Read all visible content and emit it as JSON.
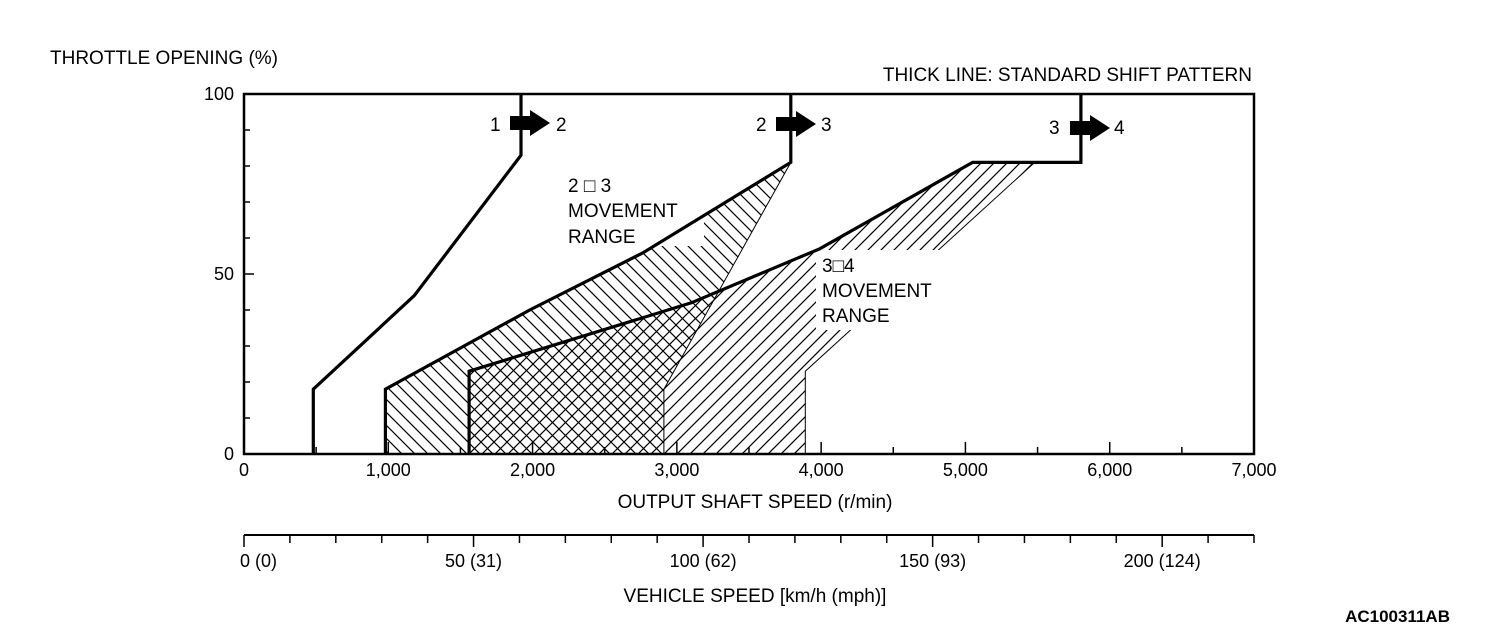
{
  "chart_data": {
    "type": "line",
    "y_axis_title": "THROTTLE OPENING (%)",
    "x_axis_title": "OUTPUT SHAFT SPEED (r/min)",
    "x2_axis_title": "VEHICLE SPEED [km/h (mph)]",
    "note": "THICK LINE: STANDARD SHIFT PATTERN",
    "figure_code": "AC100311AB",
    "x_range": [
      0,
      7000
    ],
    "y_range": [
      0,
      100
    ],
    "x_tick_values": [
      0,
      1000,
      2000,
      3000,
      4000,
      5000,
      6000,
      7000
    ],
    "x_tick_labels": [
      "0",
      "1,000",
      "2,000",
      "3,000",
      "4,000",
      "5,000",
      "6,000",
      "7,000"
    ],
    "y_tick_values": [
      0,
      50,
      100
    ],
    "y_tick_labels": [
      "0",
      "50",
      "100"
    ],
    "x2_range": [
      0,
      220
    ],
    "x2_tick_values": [
      0,
      50,
      100,
      150,
      200
    ],
    "x2_tick_labels": [
      "0 (0)",
      "50 (31)",
      "100 (62)",
      "150 (93)",
      "200 (124)"
    ],
    "shift_lines": [
      {
        "label": "1 → 2",
        "from": "1",
        "to": "2",
        "points": [
          [
            480,
            0
          ],
          [
            480,
            18
          ],
          [
            1180,
            44
          ],
          [
            1920,
            83
          ],
          [
            1920,
            100
          ]
        ]
      },
      {
        "label": "2 → 3",
        "from": "2",
        "to": "3",
        "points": [
          [
            980,
            0
          ],
          [
            980,
            18
          ],
          [
            1980,
            40
          ],
          [
            2770,
            56
          ],
          [
            3790,
            81
          ],
          [
            3790,
            100
          ]
        ]
      },
      {
        "label": "3 → 4",
        "from": "3",
        "to": "4",
        "points": [
          [
            1560,
            0
          ],
          [
            1560,
            23
          ],
          [
            3100,
            42
          ],
          [
            3990,
            57
          ],
          [
            5050,
            81
          ],
          [
            5800,
            81
          ],
          [
            5800,
            100
          ]
        ]
      }
    ],
    "movement_ranges": [
      {
        "label_from": "2",
        "label_to": "3",
        "label_text": "MOVEMENT\nRANGE",
        "upper_boundary": [
          [
            980,
            18
          ],
          [
            1980,
            40
          ],
          [
            2770,
            56
          ],
          [
            3790,
            81
          ]
        ],
        "lower_boundary": [
          [
            2910,
            0
          ],
          [
            2910,
            18
          ],
          [
            3790,
            81
          ]
        ]
      },
      {
        "label_from": "3",
        "label_to": "4",
        "label_text": "MOVEMENT\nRANGE",
        "upper_boundary": [
          [
            1560,
            23
          ],
          [
            3100,
            42
          ],
          [
            3990,
            57
          ],
          [
            5050,
            81
          ]
        ],
        "lower_boundary": [
          [
            3890,
            0
          ],
          [
            3890,
            23
          ],
          [
            5480,
            81
          ],
          [
            5050,
            81
          ]
        ]
      }
    ]
  },
  "labels": {
    "arrow12_from": "1",
    "arrow12_to": "2",
    "arrow23_from": "2",
    "arrow23_to": "3",
    "arrow34_from": "3",
    "arrow34_to": "4",
    "range23_title": "2 □ 3",
    "range23_line1": "MOVEMENT",
    "range23_line2": "RANGE",
    "range34_title": "3□4",
    "range34_line1": "MOVEMENT",
    "range34_line2": "RANGE"
  }
}
